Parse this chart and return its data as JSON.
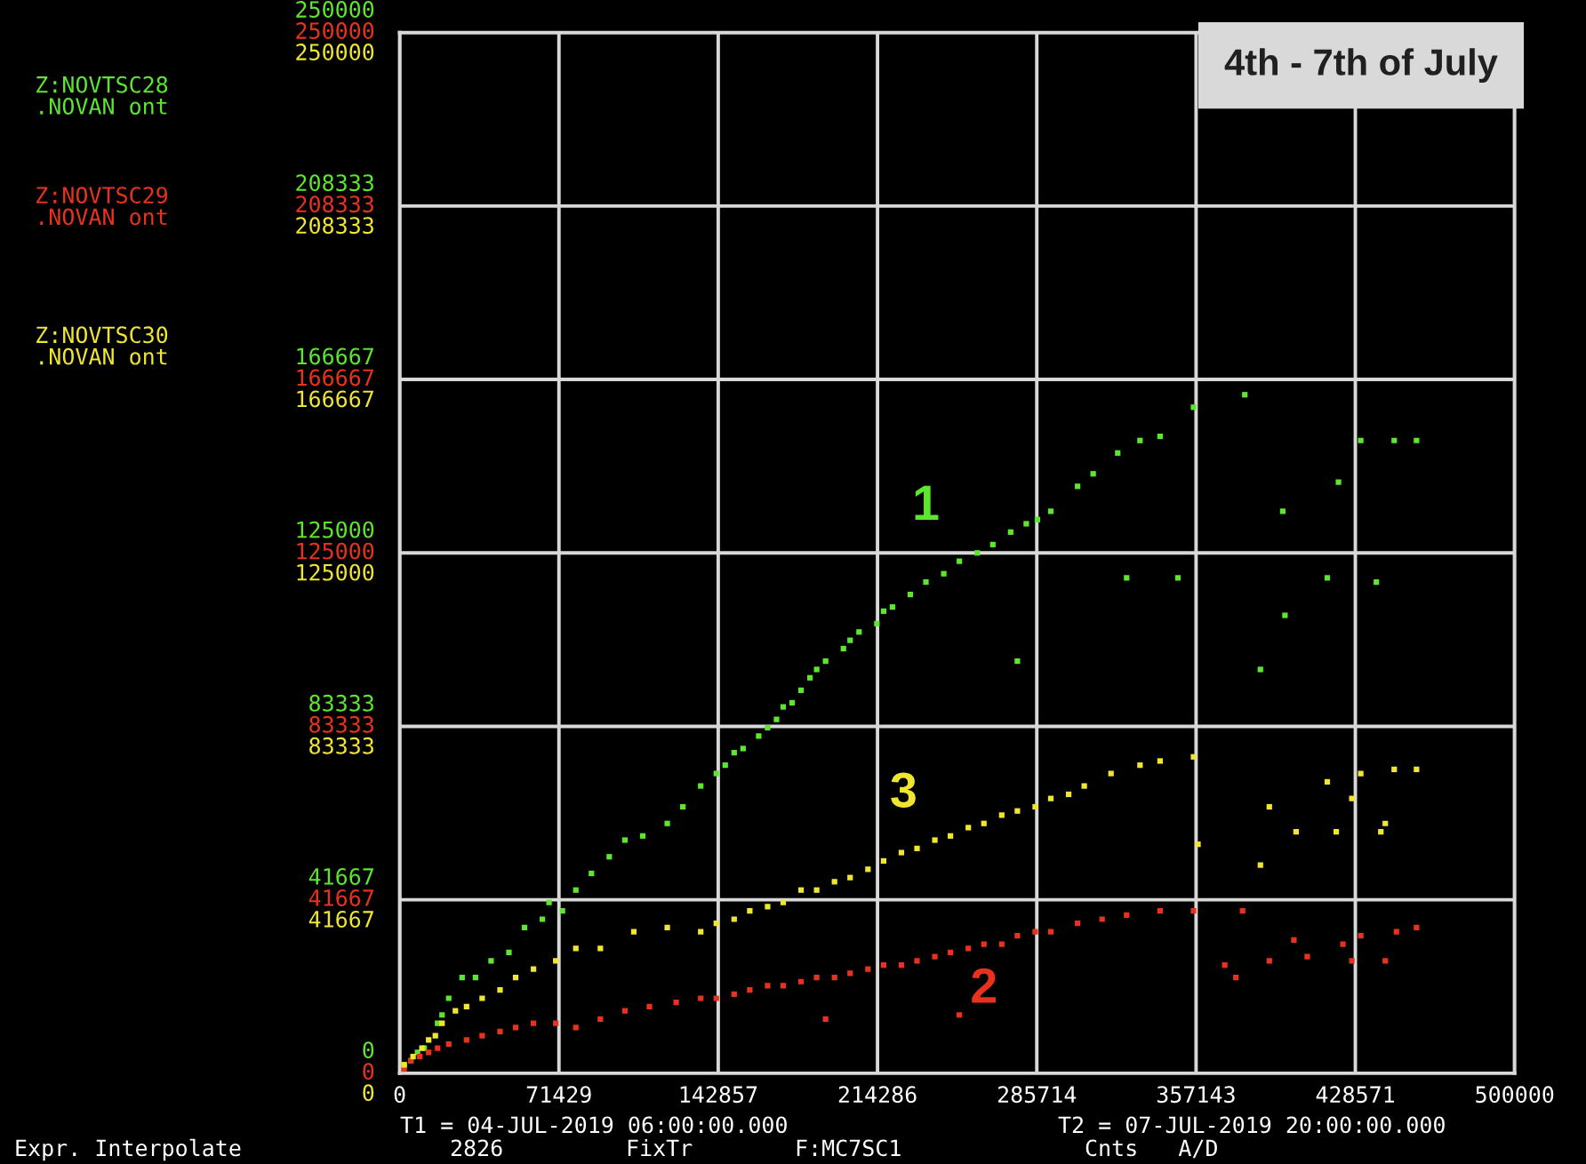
{
  "chart_data": {
    "type": "scatter",
    "title": "4th - 7th of July",
    "xlim": [
      0,
      500000
    ],
    "xticks": [
      0,
      71429,
      142857,
      214286,
      285714,
      357143,
      428571,
      500000
    ],
    "ylim": [
      0,
      250000
    ],
    "yticks": [
      0,
      41667,
      83333,
      125000,
      166667,
      208333,
      250000
    ],
    "y2lim": [
      0,
      250000
    ],
    "y2ticks": [
      0,
      41667,
      83333,
      125000,
      166667,
      208333,
      250000
    ],
    "y3lim": [
      0,
      250000
    ],
    "y3ticks": [
      0,
      41667,
      83333,
      125000,
      166667,
      208333,
      250000
    ],
    "grid": true,
    "legend": "left",
    "marker": "square",
    "series": [
      {
        "name": "Z:NOVTSC28\n.NOVAN ont",
        "color": "#5ce62e",
        "axis": "y",
        "x": [
          2000,
          5000,
          8000,
          11000,
          17000,
          19000,
          22000,
          28000,
          34000,
          41000,
          49000,
          56000,
          64000,
          67000,
          73000,
          79000,
          86000,
          94000,
          101000,
          109000,
          120000,
          127000,
          135000,
          142000,
          146000,
          150000,
          154000,
          161000,
          165000,
          169000,
          172000,
          176000,
          180000,
          184000,
          187000,
          191000,
          199000,
          202000,
          206000,
          214000,
          217000,
          221000,
          229000,
          236000,
          244000,
          251000,
          259000,
          266000,
          274000,
          281000,
          286000,
          292000,
          304000,
          311000,
          322000,
          332000,
          341000,
          356000,
          379000,
          396000,
          421000,
          431000,
          446000,
          456000,
          438000,
          416000,
          397000,
          386000,
          349000,
          277000,
          326000
        ],
        "values": [
          2000,
          3000,
          5000,
          6000,
          12000,
          14000,
          18000,
          23000,
          23000,
          27000,
          29000,
          35000,
          37000,
          41000,
          39000,
          44000,
          48000,
          52000,
          56000,
          57000,
          60000,
          64000,
          69000,
          72000,
          74000,
          77000,
          78000,
          81000,
          83000,
          85000,
          88000,
          89000,
          92000,
          95000,
          97000,
          99000,
          102000,
          104000,
          106000,
          108000,
          111000,
          112000,
          115000,
          118000,
          120000,
          123000,
          125000,
          127000,
          130000,
          132000,
          133000,
          135000,
          141000,
          144000,
          149000,
          152000,
          153000,
          160000,
          163000,
          135000,
          142000,
          152000,
          152000,
          152000,
          118000,
          119000,
          110000,
          97000,
          119000,
          99000,
          119000
        ]
      },
      {
        "name": "Z:NOVTSC29\n.NOVAN ont",
        "color": "#e8321e",
        "axis": "y2",
        "x": [
          2000,
          5000,
          9000,
          13000,
          17000,
          22000,
          30000,
          37000,
          45000,
          52000,
          60000,
          70000,
          79000,
          90000,
          101000,
          112000,
          124000,
          135000,
          142000,
          150000,
          157000,
          165000,
          172000,
          180000,
          187000,
          195000,
          202000,
          210000,
          217000,
          225000,
          232000,
          240000,
          247000,
          255000,
          262000,
          270000,
          277000,
          285000,
          292000,
          304000,
          315000,
          326000,
          341000,
          356000,
          378000,
          401000,
          423000,
          431000,
          447000,
          456000,
          390000,
          407000,
          427000,
          442000,
          375000,
          370000,
          251000,
          191000
        ],
        "values": [
          1000,
          3000,
          4000,
          5000,
          6000,
          7000,
          8000,
          9000,
          10000,
          11000,
          12000,
          12000,
          11000,
          13000,
          15000,
          16000,
          17000,
          18000,
          18000,
          19000,
          20000,
          21000,
          21000,
          22000,
          23000,
          23000,
          24000,
          25000,
          26000,
          26000,
          27000,
          28000,
          29000,
          30000,
          31000,
          31000,
          33000,
          34000,
          34000,
          36000,
          37000,
          38000,
          39000,
          39000,
          39000,
          32000,
          31000,
          33000,
          34000,
          35000,
          27000,
          28000,
          27000,
          27000,
          23000,
          26000,
          14000,
          13000
        ]
      },
      {
        "name": "Z:NOVTSC30\n.NOVAN ont",
        "color": "#f0e630",
        "axis": "y3",
        "x": [
          2000,
          6000,
          10000,
          13000,
          16000,
          19000,
          25000,
          30000,
          37000,
          45000,
          52000,
          60000,
          70000,
          79000,
          90000,
          105000,
          120000,
          135000,
          142000,
          150000,
          157000,
          165000,
          172000,
          180000,
          187000,
          195000,
          202000,
          210000,
          217000,
          225000,
          232000,
          240000,
          247000,
          255000,
          262000,
          270000,
          277000,
          285000,
          292000,
          300000,
          307000,
          319000,
          332000,
          341000,
          356000,
          390000,
          416000,
          427000,
          431000,
          442000,
          446000,
          456000,
          386000,
          358000,
          402000,
          420000,
          440000
        ],
        "values": [
          2000,
          4000,
          6000,
          8000,
          9000,
          12000,
          15000,
          16000,
          18000,
          20000,
          23000,
          25000,
          27000,
          30000,
          30000,
          34000,
          35000,
          34000,
          36000,
          37000,
          39000,
          40000,
          41000,
          44000,
          44000,
          46000,
          47000,
          49000,
          51000,
          53000,
          54000,
          56000,
          57000,
          59000,
          60000,
          62000,
          63000,
          64000,
          66000,
          67000,
          69000,
          72000,
          74000,
          75000,
          76000,
          64000,
          70000,
          66000,
          72000,
          60000,
          73000,
          73000,
          50000,
          55000,
          58000,
          58000,
          58000
        ]
      }
    ],
    "annotations": [
      "1",
      "2",
      "3",
      "T1 = 04-JUL-2019 06:00:00.000",
      "T2 = 07-JUL-2019 20:00:00.000",
      "Expr. Interpolate",
      "2826",
      "FixTr",
      "F:MC7SC1",
      "Cnts   A/D"
    ]
  }
}
